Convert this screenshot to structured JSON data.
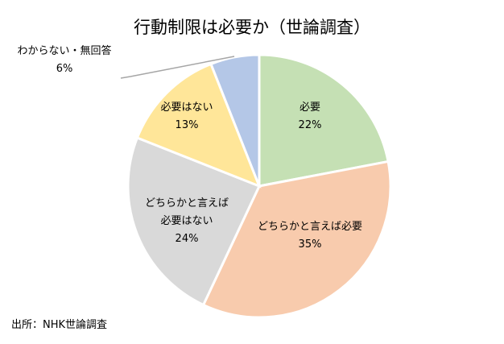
{
  "chart_data": {
    "type": "pie",
    "title": "行動制限は必要か（世論調査）",
    "start": "12 o'clock, clockwise",
    "slices": [
      {
        "label": "必要",
        "value": 22,
        "display": "22%",
        "color": "#C5E0B4"
      },
      {
        "label": "どちらかと言えば必要",
        "value": 35,
        "display": "35%",
        "color": "#F8CBAD"
      },
      {
        "label": "どちらかと言えば必要はない",
        "value": 24,
        "display": "24%",
        "color": "#D9D9D9"
      },
      {
        "label": "必要はない",
        "value": 13,
        "display": "13%",
        "color": "#FFE699"
      },
      {
        "label": "わからない・無回答",
        "value": 6,
        "display": "6%",
        "color": "#B4C7E7"
      }
    ]
  },
  "source": "出所：NHK世論調査"
}
